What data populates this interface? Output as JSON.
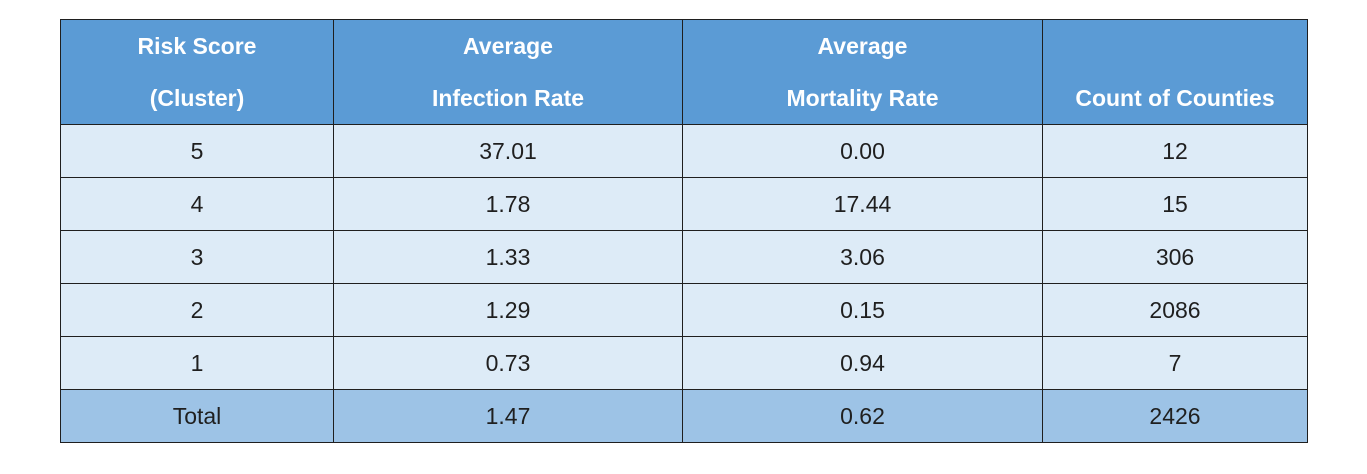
{
  "table": {
    "headers": [
      {
        "line1": "Risk Score",
        "line2": "(Cluster)"
      },
      {
        "line1": "Average",
        "line2": "Infection Rate"
      },
      {
        "line1": "Average",
        "line2": "Mortality Rate"
      },
      {
        "line1": "",
        "line2": "Count of Counties"
      }
    ],
    "rows": [
      [
        "5",
        "37.01",
        "0.00",
        "12"
      ],
      [
        "4",
        "1.78",
        "17.44",
        "15"
      ],
      [
        "3",
        "1.33",
        "3.06",
        "306"
      ],
      [
        "2",
        "1.29",
        "0.15",
        "2086"
      ],
      [
        "1",
        "0.73",
        "0.94",
        "7"
      ]
    ],
    "total": [
      "Total",
      "1.47",
      "0.62",
      "2426"
    ]
  },
  "colors": {
    "header_bg": "#5b9bd5",
    "row_bg": "#ddebf7",
    "total_bg": "#9dc3e6",
    "header_text": "#ffffff",
    "body_text": "#1f1f1f"
  }
}
